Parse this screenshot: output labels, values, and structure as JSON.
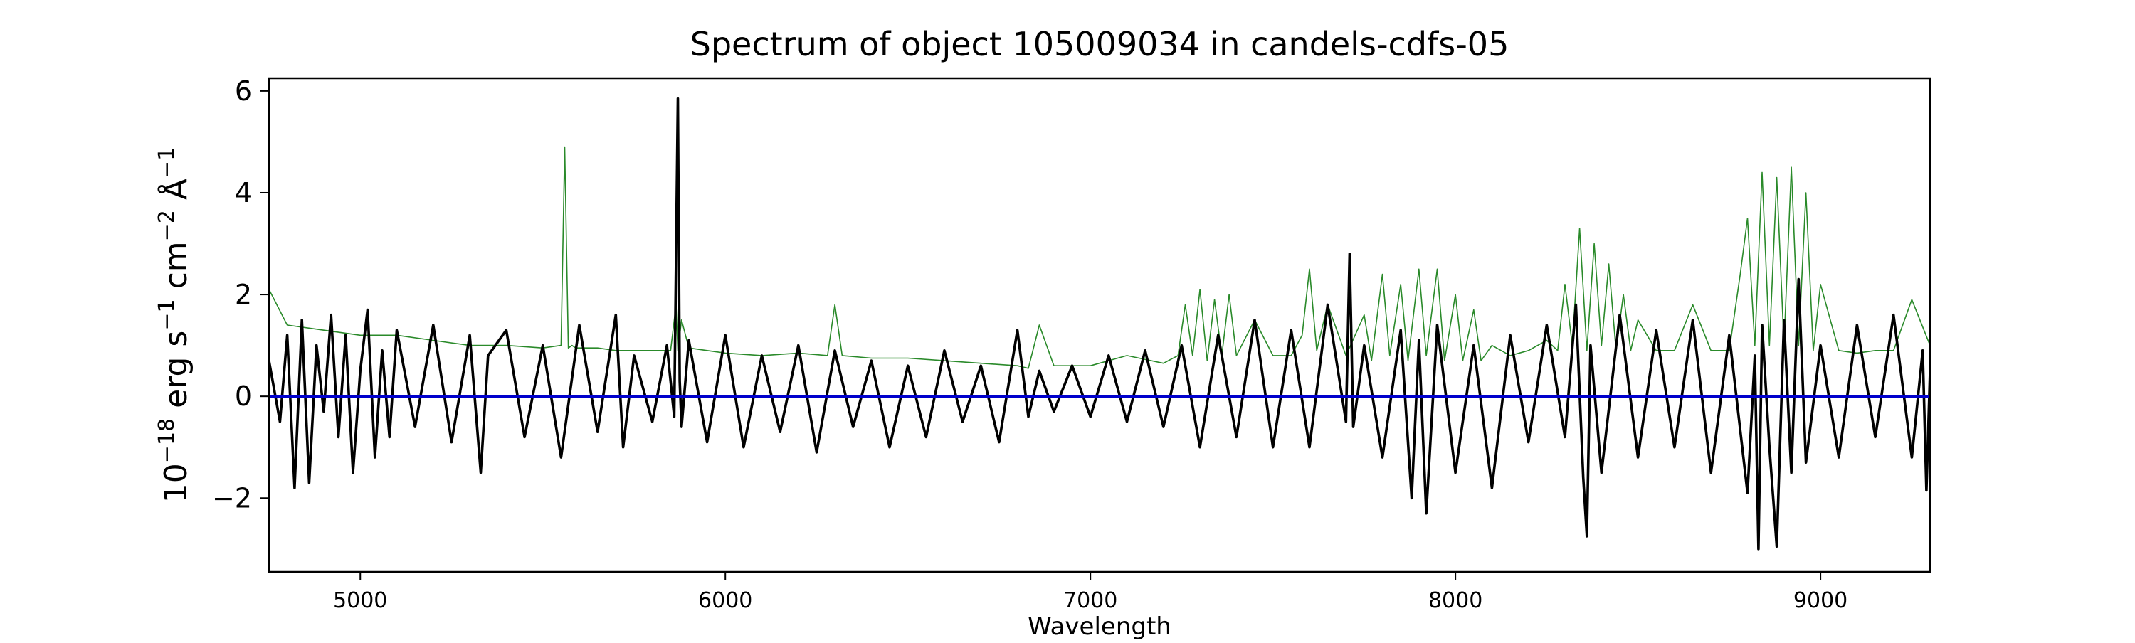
{
  "chart_data": {
    "type": "line",
    "title": "Spectrum of object 105009034 in candels-cdfs-05",
    "xlabel": "Wavelength",
    "ylabel": {
      "base": "10",
      "exp1": "−18",
      "p1": " erg s",
      "exp2": "−1",
      "p2": " cm",
      "exp3": "−2",
      "p3": " Å",
      "exp4": "−1"
    },
    "xlim": [
      4750,
      9300
    ],
    "ylim": [
      -3.45,
      6.25
    ],
    "xticks": [
      5000,
      6000,
      7000,
      8000,
      9000
    ],
    "yticks": [
      -2,
      0,
      2,
      4,
      6
    ],
    "ytick_labels": [
      "−2",
      "0",
      "2",
      "4",
      "6"
    ],
    "grid": false,
    "legend": "none",
    "series": [
      {
        "role": "noise",
        "color": "#2a8a2a",
        "x": [
          4750,
          4800,
          4900,
          5000,
          5100,
          5200,
          5300,
          5400,
          5500,
          5550,
          5560,
          5570,
          5580,
          5590,
          5650,
          5700,
          5800,
          5850,
          5865,
          5870,
          5880,
          5900,
          5950,
          6000,
          6100,
          6200,
          6280,
          6300,
          6320,
          6400,
          6500,
          6600,
          6700,
          6800,
          6830,
          6860,
          6900,
          7000,
          7100,
          7200,
          7240,
          7260,
          7280,
          7300,
          7320,
          7340,
          7360,
          7380,
          7400,
          7450,
          7500,
          7550,
          7580,
          7600,
          7620,
          7650,
          7700,
          7750,
          7770,
          7800,
          7820,
          7850,
          7870,
          7900,
          7920,
          7950,
          7970,
          8000,
          8020,
          8050,
          8070,
          8100,
          8150,
          8200,
          8250,
          8280,
          8300,
          8320,
          8340,
          8360,
          8380,
          8400,
          8420,
          8440,
          8460,
          8480,
          8500,
          8550,
          8600,
          8650,
          8700,
          8750,
          8780,
          8800,
          8820,
          8840,
          8860,
          8880,
          8900,
          8920,
          8940,
          8960,
          8980,
          9000,
          9050,
          9100,
          9150,
          9200,
          9250,
          9300
        ],
        "y": [
          2.1,
          1.4,
          1.3,
          1.2,
          1.2,
          1.1,
          1.0,
          1.0,
          0.95,
          1.0,
          4.9,
          0.95,
          1.0,
          0.95,
          0.95,
          0.9,
          0.9,
          0.9,
          1.8,
          0.9,
          1.5,
          0.95,
          0.9,
          0.85,
          0.8,
          0.85,
          0.8,
          1.8,
          0.8,
          0.75,
          0.75,
          0.7,
          0.65,
          0.6,
          0.55,
          1.4,
          0.6,
          0.6,
          0.8,
          0.65,
          0.8,
          1.8,
          0.8,
          2.1,
          0.7,
          1.9,
          0.8,
          2.0,
          0.8,
          1.5,
          0.8,
          0.8,
          1.2,
          2.5,
          0.9,
          1.8,
          0.8,
          1.6,
          0.7,
          2.4,
          0.8,
          2.2,
          0.7,
          2.5,
          0.8,
          2.5,
          0.7,
          2.0,
          0.7,
          1.7,
          0.7,
          1.0,
          0.8,
          0.9,
          1.1,
          0.9,
          2.2,
          1.0,
          3.3,
          0.9,
          3.0,
          1.0,
          2.6,
          0.9,
          2.0,
          0.9,
          1.5,
          0.9,
          0.9,
          1.8,
          0.9,
          0.9,
          2.4,
          3.5,
          1.0,
          4.4,
          1.0,
          4.3,
          1.0,
          4.5,
          1.0,
          4.0,
          0.9,
          2.2,
          0.9,
          0.85,
          0.9,
          0.9,
          1.9,
          1.0
        ]
      },
      {
        "role": "flux",
        "color": "#000000",
        "x": [
          4750,
          4780,
          4800,
          4820,
          4840,
          4860,
          4880,
          4900,
          4920,
          4940,
          4960,
          4980,
          5000,
          5020,
          5040,
          5060,
          5080,
          5100,
          5150,
          5200,
          5250,
          5300,
          5330,
          5350,
          5400,
          5450,
          5500,
          5550,
          5600,
          5650,
          5700,
          5720,
          5750,
          5800,
          5840,
          5860,
          5870,
          5875,
          5880,
          5900,
          5950,
          6000,
          6050,
          6100,
          6150,
          6200,
          6250,
          6300,
          6350,
          6400,
          6450,
          6500,
          6550,
          6600,
          6650,
          6700,
          6750,
          6800,
          6830,
          6860,
          6900,
          6950,
          7000,
          7050,
          7100,
          7150,
          7200,
          7250,
          7300,
          7350,
          7400,
          7450,
          7500,
          7550,
          7600,
          7650,
          7700,
          7710,
          7720,
          7750,
          7800,
          7850,
          7880,
          7900,
          7920,
          7950,
          8000,
          8050,
          8100,
          8150,
          8200,
          8250,
          8300,
          8330,
          8350,
          8360,
          8370,
          8400,
          8450,
          8500,
          8550,
          8600,
          8650,
          8700,
          8750,
          8800,
          8820,
          8830,
          8840,
          8860,
          8880,
          8900,
          8920,
          8940,
          8960,
          9000,
          9050,
          9100,
          9150,
          9200,
          9250,
          9280,
          9290,
          9300
        ],
        "y": [
          0.7,
          -0.5,
          1.2,
          -1.8,
          1.5,
          -1.7,
          1.0,
          -0.3,
          1.6,
          -0.8,
          1.2,
          -1.5,
          0.5,
          1.7,
          -1.2,
          0.9,
          -0.8,
          1.3,
          -0.6,
          1.4,
          -0.9,
          1.2,
          -1.5,
          0.8,
          1.3,
          -0.8,
          1.0,
          -1.2,
          1.4,
          -0.7,
          1.6,
          -1.0,
          0.8,
          -0.5,
          1.0,
          -0.4,
          5.85,
          0.3,
          -0.6,
          1.1,
          -0.9,
          1.2,
          -1.0,
          0.8,
          -0.7,
          1.0,
          -1.1,
          0.9,
          -0.6,
          0.7,
          -1.0,
          0.6,
          -0.8,
          0.9,
          -0.5,
          0.6,
          -0.9,
          1.3,
          -0.4,
          0.5,
          -0.3,
          0.6,
          -0.4,
          0.8,
          -0.5,
          0.9,
          -0.6,
          1.0,
          -1.0,
          1.2,
          -0.8,
          1.5,
          -1.0,
          1.3,
          -1.0,
          1.8,
          -0.5,
          2.8,
          -0.6,
          1.0,
          -1.2,
          1.3,
          -2.0,
          1.1,
          -2.3,
          1.4,
          -1.5,
          1.0,
          -1.8,
          1.2,
          -0.9,
          1.4,
          -0.8,
          1.8,
          -1.6,
          -2.75,
          1.0,
          -1.5,
          1.6,
          -1.2,
          1.3,
          -1.0,
          1.5,
          -1.5,
          1.2,
          -1.9,
          0.8,
          -3.0,
          1.4,
          -1.0,
          -2.95,
          1.5,
          -1.5,
          2.3,
          -1.3,
          1.0,
          -1.2,
          1.4,
          -0.8,
          1.6,
          -1.2,
          0.9,
          -1.85,
          0.5
        ]
      },
      {
        "role": "model",
        "color": "#0000cc",
        "x": [
          4750,
          9300
        ],
        "y": [
          0.0,
          0.0
        ]
      }
    ]
  }
}
